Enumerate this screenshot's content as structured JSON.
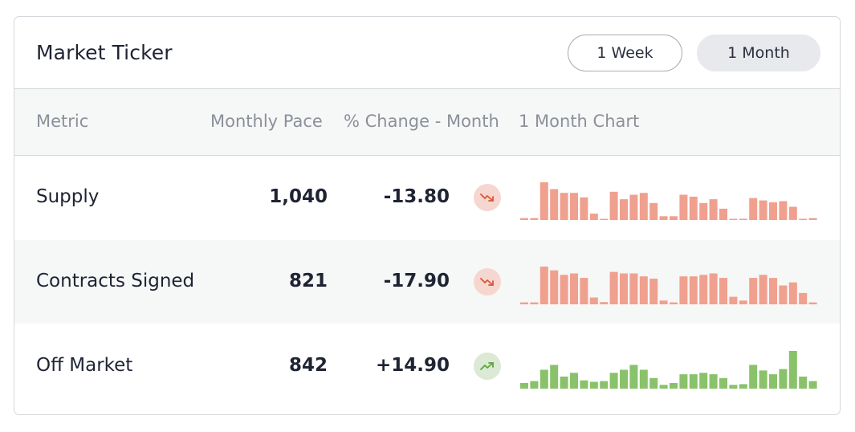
{
  "card": {
    "title": "Market Ticker"
  },
  "range_buttons": {
    "week_label": "1 Week",
    "month_label": "1 Month",
    "selected": "1 Month"
  },
  "table": {
    "columns": [
      "Metric",
      "Monthly Pace",
      "% Change - Month",
      "1 Month Chart"
    ],
    "rows": [
      {
        "metric": "Supply",
        "pace": "1,040",
        "change": "-13.80",
        "trend": "down",
        "trend_icon": "trending-down-icon",
        "color": "#f0a08e",
        "trend_color": "#d8553a",
        "spark": [
          0.05,
          0.05,
          1,
          0.82,
          0.72,
          0.72,
          0.6,
          0.17,
          0.02,
          0.75,
          0.55,
          0.67,
          0.72,
          0.45,
          0.1,
          0.1,
          0.67,
          0.62,
          0.45,
          0.55,
          0.3,
          0.02,
          0.02,
          0.58,
          0.52,
          0.47,
          0.5,
          0.35,
          0.02,
          0.05
        ]
      },
      {
        "metric": "Contracts Signed",
        "pace": "821",
        "change": "-17.90",
        "trend": "down",
        "trend_icon": "trending-down-icon",
        "color": "#f0a08e",
        "trend_color": "#d8553a",
        "spark": [
          0.05,
          0.05,
          1,
          0.9,
          0.78,
          0.82,
          0.7,
          0.18,
          0.06,
          0.86,
          0.82,
          0.82,
          0.74,
          0.68,
          0.1,
          0.05,
          0.74,
          0.74,
          0.78,
          0.82,
          0.7,
          0.2,
          0.1,
          0.7,
          0.78,
          0.7,
          0.5,
          0.58,
          0.3,
          0.05
        ]
      },
      {
        "metric": "Off Market",
        "pace": "842",
        "change": "+14.90",
        "trend": "up",
        "trend_icon": "trending-up-icon",
        "color": "#89c26a",
        "trend_color": "#5aa63a",
        "spark": [
          0.15,
          0.2,
          0.5,
          0.63,
          0.32,
          0.42,
          0.22,
          0.18,
          0.2,
          0.42,
          0.5,
          0.63,
          0.5,
          0.28,
          0.1,
          0.15,
          0.38,
          0.38,
          0.42,
          0.38,
          0.28,
          0.1,
          0.12,
          0.63,
          0.48,
          0.38,
          0.52,
          1,
          0.32,
          0.2
        ]
      }
    ]
  }
}
